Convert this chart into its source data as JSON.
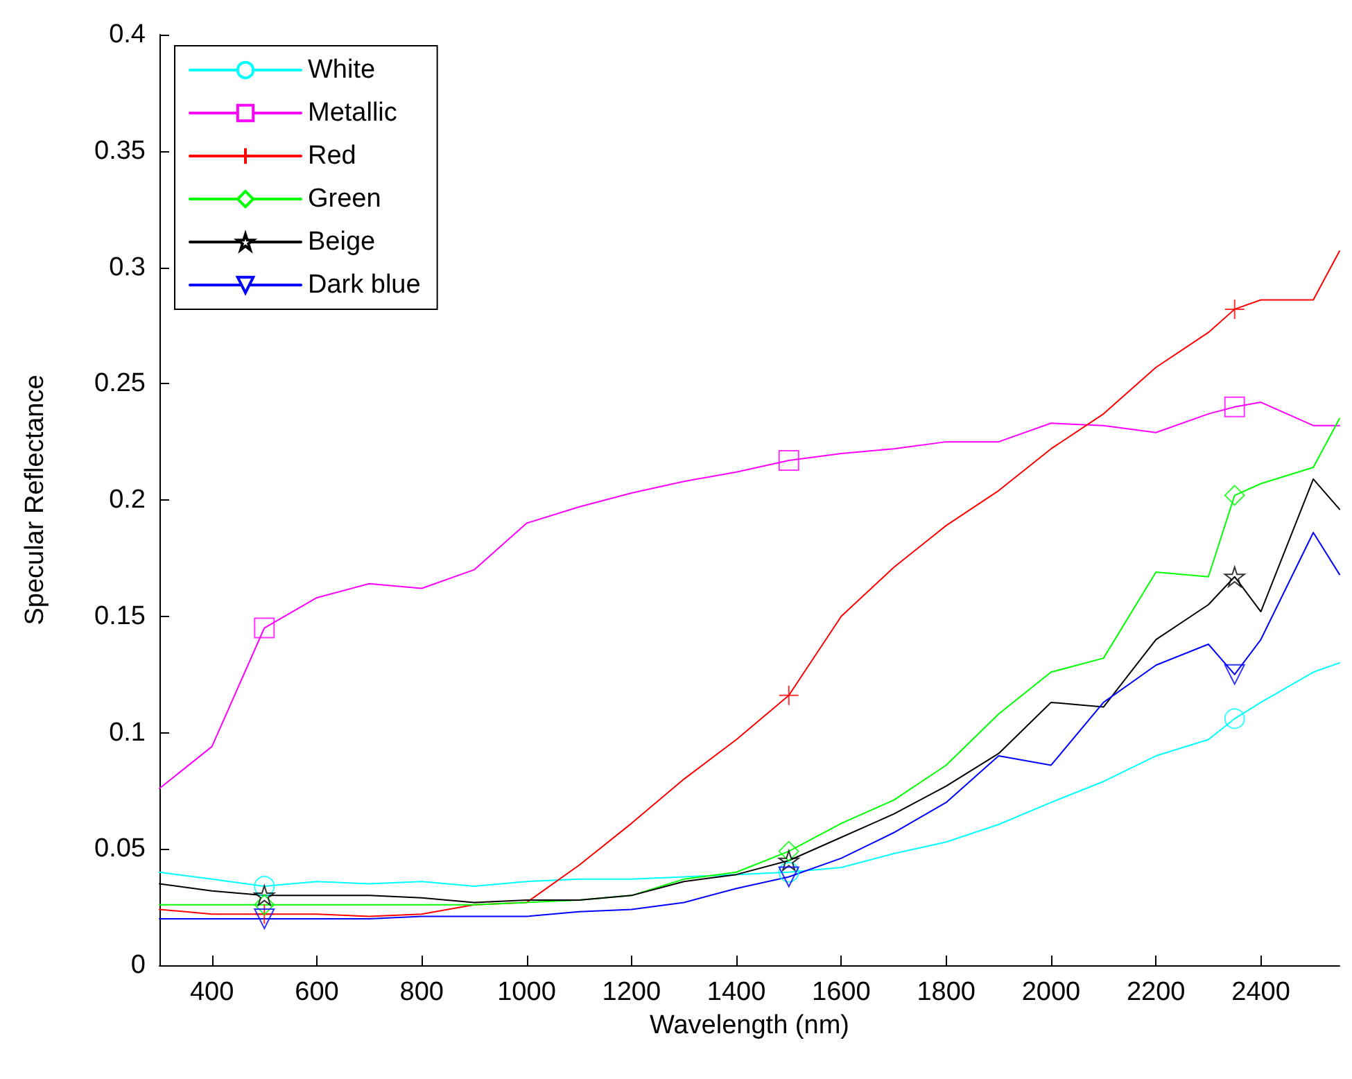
{
  "chart_data": {
    "type": "line",
    "xlabel": "Wavelength (nm)",
    "ylabel": "Specular Reflectance",
    "x": [
      300,
      400,
      500,
      600,
      700,
      800,
      900,
      1000,
      1100,
      1200,
      1300,
      1400,
      1500,
      1600,
      1700,
      1800,
      1900,
      2000,
      2100,
      2200,
      2300,
      2350,
      2400,
      2500,
      2550
    ],
    "xlim": [
      300,
      2550
    ],
    "xticks": [
      400,
      600,
      800,
      1000,
      1200,
      1400,
      1600,
      1800,
      2000,
      2200,
      2400
    ],
    "ylim": [
      0,
      0.4
    ],
    "yticks": [
      0,
      0.05,
      0.1,
      0.15,
      0.2,
      0.25,
      0.3,
      0.35,
      0.4
    ],
    "legend": "top left",
    "line_style": "solid",
    "series": [
      {
        "name": "White",
        "color": "#00ffff",
        "values": [
          0.04,
          0.037,
          0.034,
          0.036,
          0.035,
          0.036,
          0.034,
          0.036,
          0.037,
          0.037,
          0.038,
          0.039,
          0.04,
          0.042,
          0.048,
          0.053,
          0.0605,
          0.07,
          0.079,
          0.09,
          0.097,
          0.106,
          0.113,
          0.126,
          0.13
        ]
      },
      {
        "type": "scatter",
        "color": "#00ffff",
        "marker": "circle",
        "x": [
          500,
          1500,
          2350
        ],
        "values": [
          0.034,
          0.04,
          0.106
        ]
      },
      {
        "name": "Metallic",
        "color": "#ff00ff",
        "values": [
          0.076,
          0.094,
          0.145,
          0.158,
          0.164,
          0.162,
          0.17,
          0.19,
          0.197,
          0.203,
          0.208,
          0.212,
          0.217,
          0.22,
          0.222,
          0.225,
          0.225,
          0.233,
          0.232,
          0.229,
          0.237,
          0.24,
          0.242,
          0.232,
          0.232
        ]
      },
      {
        "type": "scatter",
        "color": "#ff00ff",
        "marker": "square",
        "x": [
          500,
          1500,
          2350
        ],
        "values": [
          0.145,
          0.217,
          0.24
        ]
      },
      {
        "name": "Red",
        "color": "#ff0000",
        "values": [
          0.024,
          0.022,
          0.022,
          0.022,
          0.021,
          0.022,
          0.026,
          0.027,
          0.043,
          0.061,
          0.08,
          0.097,
          0.116,
          0.15,
          0.171,
          0.189,
          0.204,
          0.222,
          0.237,
          0.257,
          0.272,
          0.282,
          0.286,
          0.286,
          0.307
        ]
      },
      {
        "type": "scatter",
        "color": "#ff0000",
        "marker": "cross",
        "x": [
          500,
          1500,
          2350
        ],
        "values": [
          0.022,
          0.116,
          0.282
        ]
      },
      {
        "name": "Green",
        "color": "#00ff00",
        "values": [
          0.026,
          0.026,
          0.026,
          0.026,
          0.026,
          0.026,
          0.026,
          0.027,
          0.028,
          0.03,
          0.037,
          0.04,
          0.049,
          0.061,
          0.071,
          0.086,
          0.108,
          0.126,
          0.132,
          0.169,
          0.167,
          0.202,
          0.207,
          0.214,
          0.235
        ]
      },
      {
        "type": "scatter",
        "color": "#00ff00",
        "marker": "diamond",
        "x": [
          500,
          1500,
          2350
        ],
        "values": [
          0.026,
          0.049,
          0.202
        ]
      },
      {
        "name": "Beige",
        "color": "#000000",
        "values": [
          0.035,
          0.032,
          0.03,
          0.03,
          0.03,
          0.029,
          0.027,
          0.028,
          0.028,
          0.03,
          0.036,
          0.039,
          0.045,
          0.055,
          0.065,
          0.077,
          0.091,
          0.113,
          0.111,
          0.14,
          0.155,
          0.167,
          0.152,
          0.209,
          0.196
        ]
      },
      {
        "type": "scatter",
        "color": "#000000",
        "marker": "star",
        "x": [
          500,
          1500,
          2350
        ],
        "values": [
          0.03,
          0.045,
          0.167
        ]
      },
      {
        "name": "Dark blue",
        "color": "#0000ff",
        "values": [
          0.02,
          0.02,
          0.02,
          0.02,
          0.02,
          0.021,
          0.021,
          0.021,
          0.023,
          0.024,
          0.027,
          0.033,
          0.038,
          0.046,
          0.057,
          0.07,
          0.09,
          0.086,
          0.113,
          0.129,
          0.138,
          0.125,
          0.14,
          0.186,
          0.168
        ]
      },
      {
        "type": "scatter",
        "color": "#0000ff",
        "marker": "triangle",
        "x": [
          500,
          1500,
          2350
        ],
        "values": [
          0.02,
          0.038,
          0.125
        ]
      }
    ]
  }
}
